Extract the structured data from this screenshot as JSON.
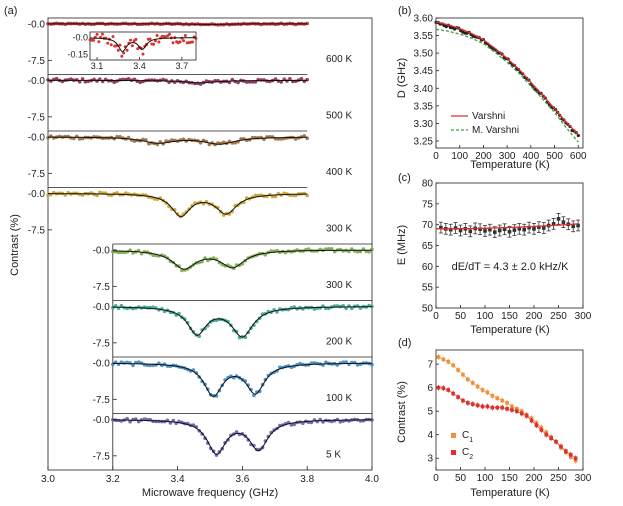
{
  "chart_data": [
    {
      "panel": "(a)",
      "type": "scatter",
      "title": "",
      "xlabel": "Microwave frequency (GHz)",
      "ylabel": "Contrast (%)",
      "xlim": [
        3.0,
        4.0
      ],
      "xticks": [
        3.0,
        3.2,
        3.4,
        3.6,
        3.8,
        4.0
      ],
      "x_tick_labels": [
        "3.0",
        "3.2",
        "3.4",
        "3.6",
        "3.8",
        "4.0"
      ],
      "ylim": [
        -10,
        1
      ],
      "y_tick_labels": [
        "-0.0",
        "-7.5"
      ],
      "series": [
        {
          "name": "600 K",
          "label": "600 K",
          "x_range": [
            3.0,
            3.8
          ],
          "dips": [
            {
              "center": 3.5,
              "depth": 0.12,
              "width": 0.05
            }
          ],
          "color": "#c0272d"
        },
        {
          "name": "500 K",
          "label": "500 K",
          "x_range": [
            3.0,
            3.8
          ],
          "dips": [
            {
              "center": 3.47,
              "depth": 0.5,
              "width": 0.06
            }
          ],
          "color": "#8a2a55"
        },
        {
          "name": "400 K",
          "label": "400 K",
          "x_range": [
            3.0,
            3.8
          ],
          "dips": [
            {
              "center": 3.34,
              "depth": 1.2,
              "width": 0.06
            },
            {
              "center": 3.53,
              "depth": 1.4,
              "width": 0.06
            }
          ],
          "color": "#9a6b3a"
        },
        {
          "name": "300 K",
          "label": "300 K",
          "x_range": [
            3.0,
            3.8
          ],
          "dips": [
            {
              "center": 3.41,
              "depth": 4.5,
              "width": 0.035
            },
            {
              "center": 3.55,
              "depth": 4.0,
              "width": 0.04
            }
          ],
          "color": "#c9a02a"
        },
        {
          "name": "300 K (2)",
          "label": "300 K",
          "x_range": [
            3.2,
            4.0
          ],
          "dips": [
            {
              "center": 3.42,
              "depth": 3.7,
              "width": 0.045
            },
            {
              "center": 3.57,
              "depth": 3.4,
              "width": 0.045
            }
          ],
          "color": "#7aa84a"
        },
        {
          "name": "200 K",
          "label": "200 K",
          "x_range": [
            3.2,
            4.0
          ],
          "dips": [
            {
              "center": 3.46,
              "depth": 5.5,
              "width": 0.035
            },
            {
              "center": 3.6,
              "depth": 6.0,
              "width": 0.04
            }
          ],
          "color": "#3aa391"
        },
        {
          "name": "100 K",
          "label": "100 K",
          "x_range": [
            3.2,
            4.0
          ],
          "dips": [
            {
              "center": 3.51,
              "depth": 6.5,
              "width": 0.035
            },
            {
              "center": 3.64,
              "depth": 6.0,
              "width": 0.035
            }
          ],
          "color": "#3b87c4"
        },
        {
          "name": "5 K",
          "label": "5 K",
          "x_range": [
            3.2,
            4.0
          ],
          "dips": [
            {
              "center": 3.52,
              "depth": 6.8,
              "width": 0.035
            },
            {
              "center": 3.65,
              "depth": 6.0,
              "width": 0.035
            }
          ],
          "color": "#6a5aa8"
        }
      ],
      "inset": {
        "xlim": [
          3.05,
          3.8
        ],
        "x_tick_labels": [
          "3.1",
          "3.4",
          "3.7"
        ],
        "y_tick_labels": [
          "-0.0",
          "-0.15"
        ],
        "ylim": [
          -0.2,
          0.05
        ]
      }
    },
    {
      "panel": "(b)",
      "type": "line",
      "xlabel": "Temperature (K)",
      "ylabel": "D (GHz)",
      "xlim": [
        0,
        620
      ],
      "ylim": [
        3.23,
        3.6
      ],
      "x_tick_labels": [
        "0",
        "100",
        "200",
        "300",
        "400",
        "500",
        "600"
      ],
      "y_tick_labels": [
        "3.60",
        "3.55",
        "3.50",
        "3.45",
        "3.40",
        "3.35",
        "3.30",
        "3.25"
      ],
      "data_points": {
        "x": [
          5,
          50,
          100,
          150,
          200,
          250,
          300,
          350,
          400,
          450,
          500,
          550,
          575,
          600
        ],
        "y": [
          3.585,
          3.578,
          3.567,
          3.553,
          3.535,
          3.51,
          3.482,
          3.451,
          3.414,
          3.377,
          3.339,
          3.3,
          3.283,
          3.265
        ]
      },
      "series": [
        {
          "name": "Varshni",
          "style": "solid",
          "color": "#e0302b"
        },
        {
          "name": "M. Varshni",
          "style": "dashed",
          "color": "#3ca03c"
        }
      ]
    },
    {
      "panel": "(c)",
      "type": "scatter",
      "xlabel": "Temperature (K)",
      "ylabel": "E (MHz)",
      "xlim": [
        0,
        300
      ],
      "ylim": [
        50,
        80
      ],
      "x_tick_labels": [
        "0",
        "50",
        "100",
        "150",
        "200",
        "250",
        "300"
      ],
      "y_tick_labels": [
        "80",
        "75",
        "70",
        "65",
        "60",
        "55",
        "50"
      ],
      "annotation": "dE/dT = 4.3 ± 2.0 kHz/K",
      "x": [
        10,
        20,
        30,
        40,
        50,
        60,
        70,
        80,
        90,
        100,
        110,
        120,
        130,
        140,
        150,
        160,
        170,
        180,
        190,
        200,
        210,
        220,
        230,
        240,
        250,
        260,
        270,
        280,
        290
      ],
      "y": [
        69.3,
        69.0,
        68.8,
        69.2,
        68.6,
        69.0,
        68.4,
        69.1,
        68.9,
        68.5,
        68.8,
        68.2,
        68.6,
        68.9,
        68.3,
        68.7,
        69.0,
        68.8,
        69.3,
        69.0,
        69.4,
        69.2,
        69.8,
        70.2,
        71.4,
        70.6,
        70.1,
        69.6,
        69.8
      ],
      "err": 1.3,
      "fit": {
        "x": [
          0,
          290
        ],
        "y": [
          69.0,
          70.2
        ],
        "color": "#e0302b"
      }
    },
    {
      "panel": "(d)",
      "type": "scatter",
      "xlabel": "Temperature (K)",
      "ylabel": "Contrast (%)",
      "xlim": [
        0,
        300
      ],
      "ylim": [
        2.5,
        7.6
      ],
      "x_tick_labels": [
        "0",
        "50",
        "100",
        "150",
        "200",
        "250",
        "300"
      ],
      "y_tick_labels": [
        "7",
        "6",
        "5",
        "4",
        "3"
      ],
      "series": [
        {
          "name": "C1",
          "name_main": "C",
          "name_sub": "1",
          "color": "#f0913a",
          "x": [
            5,
            15,
            25,
            35,
            45,
            55,
            65,
            75,
            85,
            95,
            105,
            115,
            125,
            135,
            145,
            155,
            165,
            175,
            185,
            195,
            205,
            215,
            225,
            235,
            245,
            255,
            265,
            275,
            285
          ],
          "y": [
            7.3,
            7.2,
            7.1,
            6.95,
            6.75,
            6.55,
            6.35,
            6.2,
            6.05,
            5.9,
            5.8,
            5.65,
            5.55,
            5.45,
            5.35,
            5.2,
            5.1,
            5.0,
            4.85,
            4.7,
            4.5,
            4.3,
            4.1,
            3.9,
            3.7,
            3.45,
            3.25,
            3.05,
            2.9
          ]
        },
        {
          "name": "C2",
          "name_main": "C",
          "name_sub": "2",
          "color": "#d8332c",
          "x": [
            5,
            15,
            25,
            35,
            45,
            55,
            65,
            75,
            85,
            95,
            105,
            115,
            125,
            135,
            145,
            155,
            165,
            175,
            185,
            195,
            205,
            215,
            225,
            235,
            245,
            255,
            265,
            275,
            285
          ],
          "y": [
            6.0,
            5.98,
            5.9,
            5.75,
            5.6,
            5.45,
            5.35,
            5.3,
            5.25,
            5.2,
            5.2,
            5.15,
            5.15,
            5.15,
            5.1,
            5.05,
            5.0,
            4.9,
            4.8,
            4.6,
            4.4,
            4.2,
            4.0,
            3.85,
            3.7,
            3.5,
            3.3,
            3.15,
            3.0
          ]
        }
      ]
    }
  ]
}
